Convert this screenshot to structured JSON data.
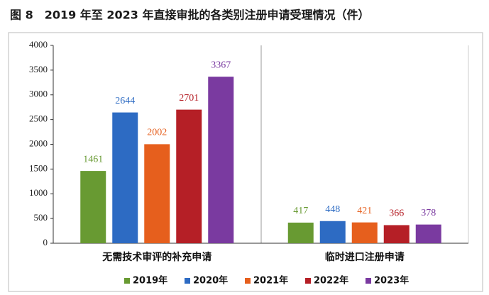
{
  "chart_data": {
    "type": "bar",
    "title": "图 8　2019 年至 2023 年直接审批的各类别注册申请受理情况（件）",
    "categories": [
      "无需技术审评的补充申请",
      "临时进口注册申请"
    ],
    "series": [
      {
        "name": "2019年",
        "color": "#689a32",
        "values": [
          1461,
          417
        ]
      },
      {
        "name": "2020年",
        "color": "#2d6bc3",
        "values": [
          2644,
          448
        ]
      },
      {
        "name": "2021年",
        "color": "#e65f1d",
        "values": [
          2002,
          421
        ]
      },
      {
        "name": "2022年",
        "color": "#b51f26",
        "values": [
          2701,
          366
        ]
      },
      {
        "name": "2023年",
        "color": "#7a3aa0",
        "values": [
          3367,
          378
        ]
      }
    ],
    "ylim": [
      0,
      4000
    ],
    "yticks": [
      0,
      500,
      1000,
      1500,
      2000,
      2500,
      3000,
      3500,
      4000
    ],
    "legend": "bottom"
  }
}
